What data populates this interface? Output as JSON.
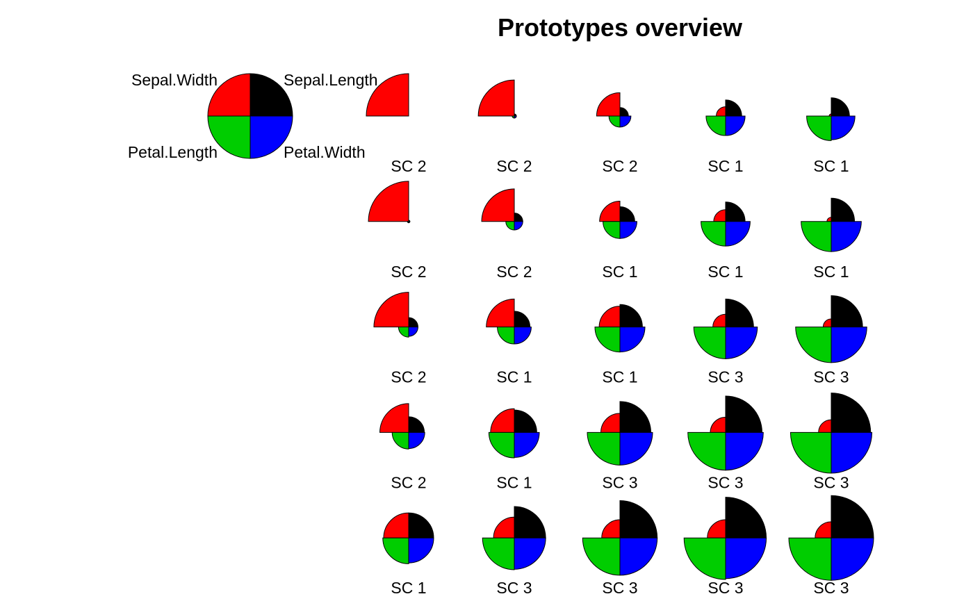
{
  "chart_data": {
    "type": "segments",
    "title": "Prototypes overview",
    "variables": [
      "Sepal.Length",
      "Sepal.Width",
      "Petal.Length",
      "Petal.Width"
    ],
    "colors": {
      "Sepal.Length": "#000000",
      "Sepal.Width": "#ff0000",
      "Petal.Length": "#00cd00",
      "Petal.Width": "#0000ff"
    },
    "legend_position": "top-left",
    "grid": {
      "rows": 5,
      "cols": 5
    },
    "value_range": [
      0,
      1
    ],
    "prototypes": [
      {
        "label": "SC 2",
        "values": [
          0.0,
          1.0,
          0.0,
          0.0
        ]
      },
      {
        "label": "SC 2",
        "values": [
          0.05,
          0.85,
          0.05,
          0.05
        ]
      },
      {
        "label": "SC 2",
        "values": [
          0.2,
          0.55,
          0.26,
          0.26
        ]
      },
      {
        "label": "SC 1",
        "values": [
          0.38,
          0.22,
          0.46,
          0.46
        ]
      },
      {
        "label": "SC 1",
        "values": [
          0.43,
          0.05,
          0.58,
          0.56
        ]
      },
      {
        "label": "SC 2",
        "values": [
          0.03,
          0.95,
          0.03,
          0.03
        ]
      },
      {
        "label": "SC 2",
        "values": [
          0.2,
          0.77,
          0.2,
          0.2
        ]
      },
      {
        "label": "SC 1",
        "values": [
          0.35,
          0.48,
          0.4,
          0.4
        ]
      },
      {
        "label": "SC 1",
        "values": [
          0.46,
          0.28,
          0.58,
          0.58
        ]
      },
      {
        "label": "SC 1",
        "values": [
          0.55,
          0.1,
          0.71,
          0.71
        ]
      },
      {
        "label": "SC 2",
        "values": [
          0.22,
          0.82,
          0.24,
          0.22
        ]
      },
      {
        "label": "SC 1",
        "values": [
          0.37,
          0.66,
          0.4,
          0.4
        ]
      },
      {
        "label": "SC 1",
        "values": [
          0.53,
          0.49,
          0.59,
          0.59
        ]
      },
      {
        "label": "SC 3",
        "values": [
          0.66,
          0.3,
          0.75,
          0.75
        ]
      },
      {
        "label": "SC 3",
        "values": [
          0.74,
          0.19,
          0.84,
          0.84
        ]
      },
      {
        "label": "SC 2",
        "values": [
          0.37,
          0.68,
          0.39,
          0.38
        ]
      },
      {
        "label": "SC 1",
        "values": [
          0.53,
          0.56,
          0.6,
          0.59
        ]
      },
      {
        "label": "SC 3",
        "values": [
          0.73,
          0.45,
          0.77,
          0.77
        ]
      },
      {
        "label": "SC 3",
        "values": [
          0.86,
          0.36,
          0.89,
          0.89
        ]
      },
      {
        "label": "SC 3",
        "values": [
          0.93,
          0.3,
          0.96,
          0.96
        ]
      },
      {
        "label": "SC 1",
        "values": [
          0.59,
          0.59,
          0.61,
          0.59
        ]
      },
      {
        "label": "SC 3",
        "values": [
          0.74,
          0.49,
          0.75,
          0.74
        ]
      },
      {
        "label": "SC 3",
        "values": [
          0.88,
          0.43,
          0.88,
          0.88
        ]
      },
      {
        "label": "SC 3",
        "values": [
          0.96,
          0.43,
          0.98,
          0.96
        ]
      },
      {
        "label": "SC 3",
        "values": [
          1.0,
          0.38,
          1.0,
          1.0
        ]
      }
    ]
  }
}
